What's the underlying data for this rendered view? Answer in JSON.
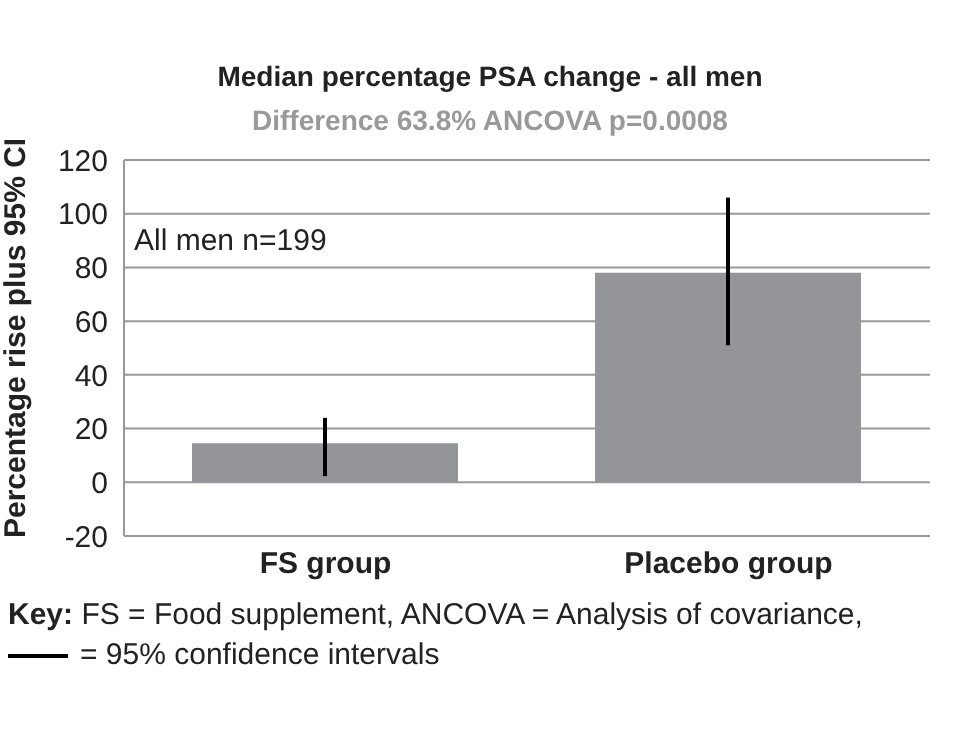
{
  "chart_data": {
    "type": "bar",
    "title": "Median percentage PSA change - all men",
    "subtitle": "Difference 63.8% ANCOVA p=0.0008",
    "ylabel": "Percentage rise plus 95% CI",
    "categories": [
      "FS group",
      "Placebo group"
    ],
    "values": [
      14.5,
      78
    ],
    "errors": [
      [
        2.3,
        24
      ],
      [
        51,
        106
      ]
    ],
    "color": "#939598",
    "ylim": [
      -20,
      120
    ],
    "yticks": [
      -20,
      0,
      20,
      40,
      60,
      80,
      100,
      120
    ],
    "grid": "y",
    "annotations": [
      "All men n=199",
      "Key:",
      "FS = Food supplement, ANCOVA = Analysis of covariance,",
      "= 95% confidence intervals"
    ]
  }
}
